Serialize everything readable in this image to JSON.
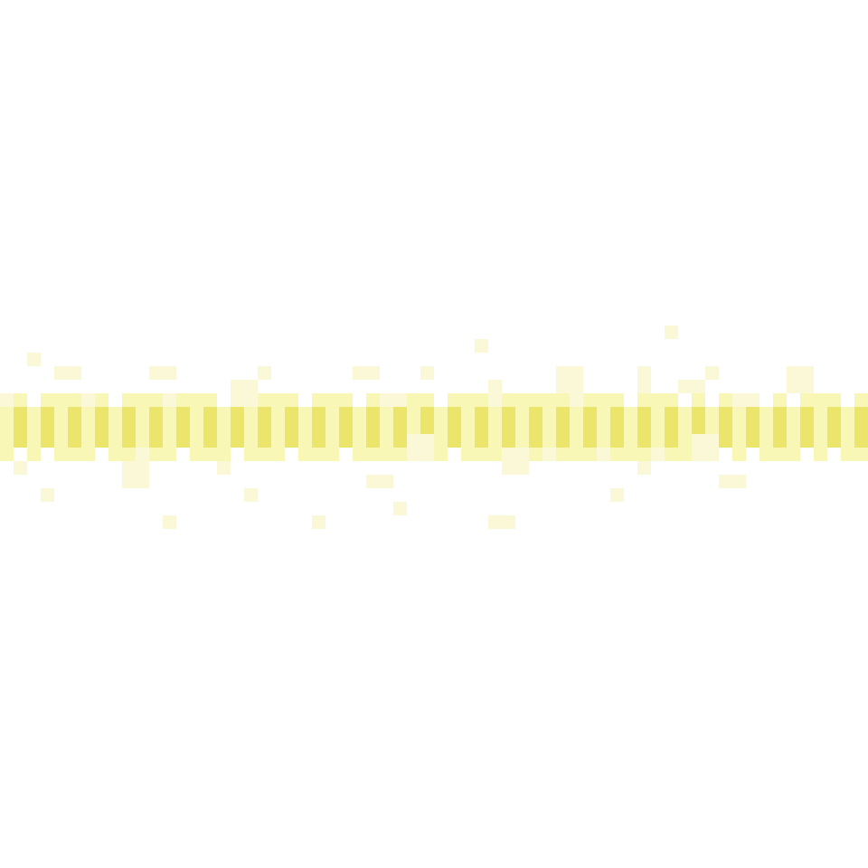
{
  "colors": {
    "background": "#ffffff",
    "strong": "#ebe56c",
    "light": "#f9f7b6",
    "faint": "#fbf8d8"
  },
  "visible_text": []
}
